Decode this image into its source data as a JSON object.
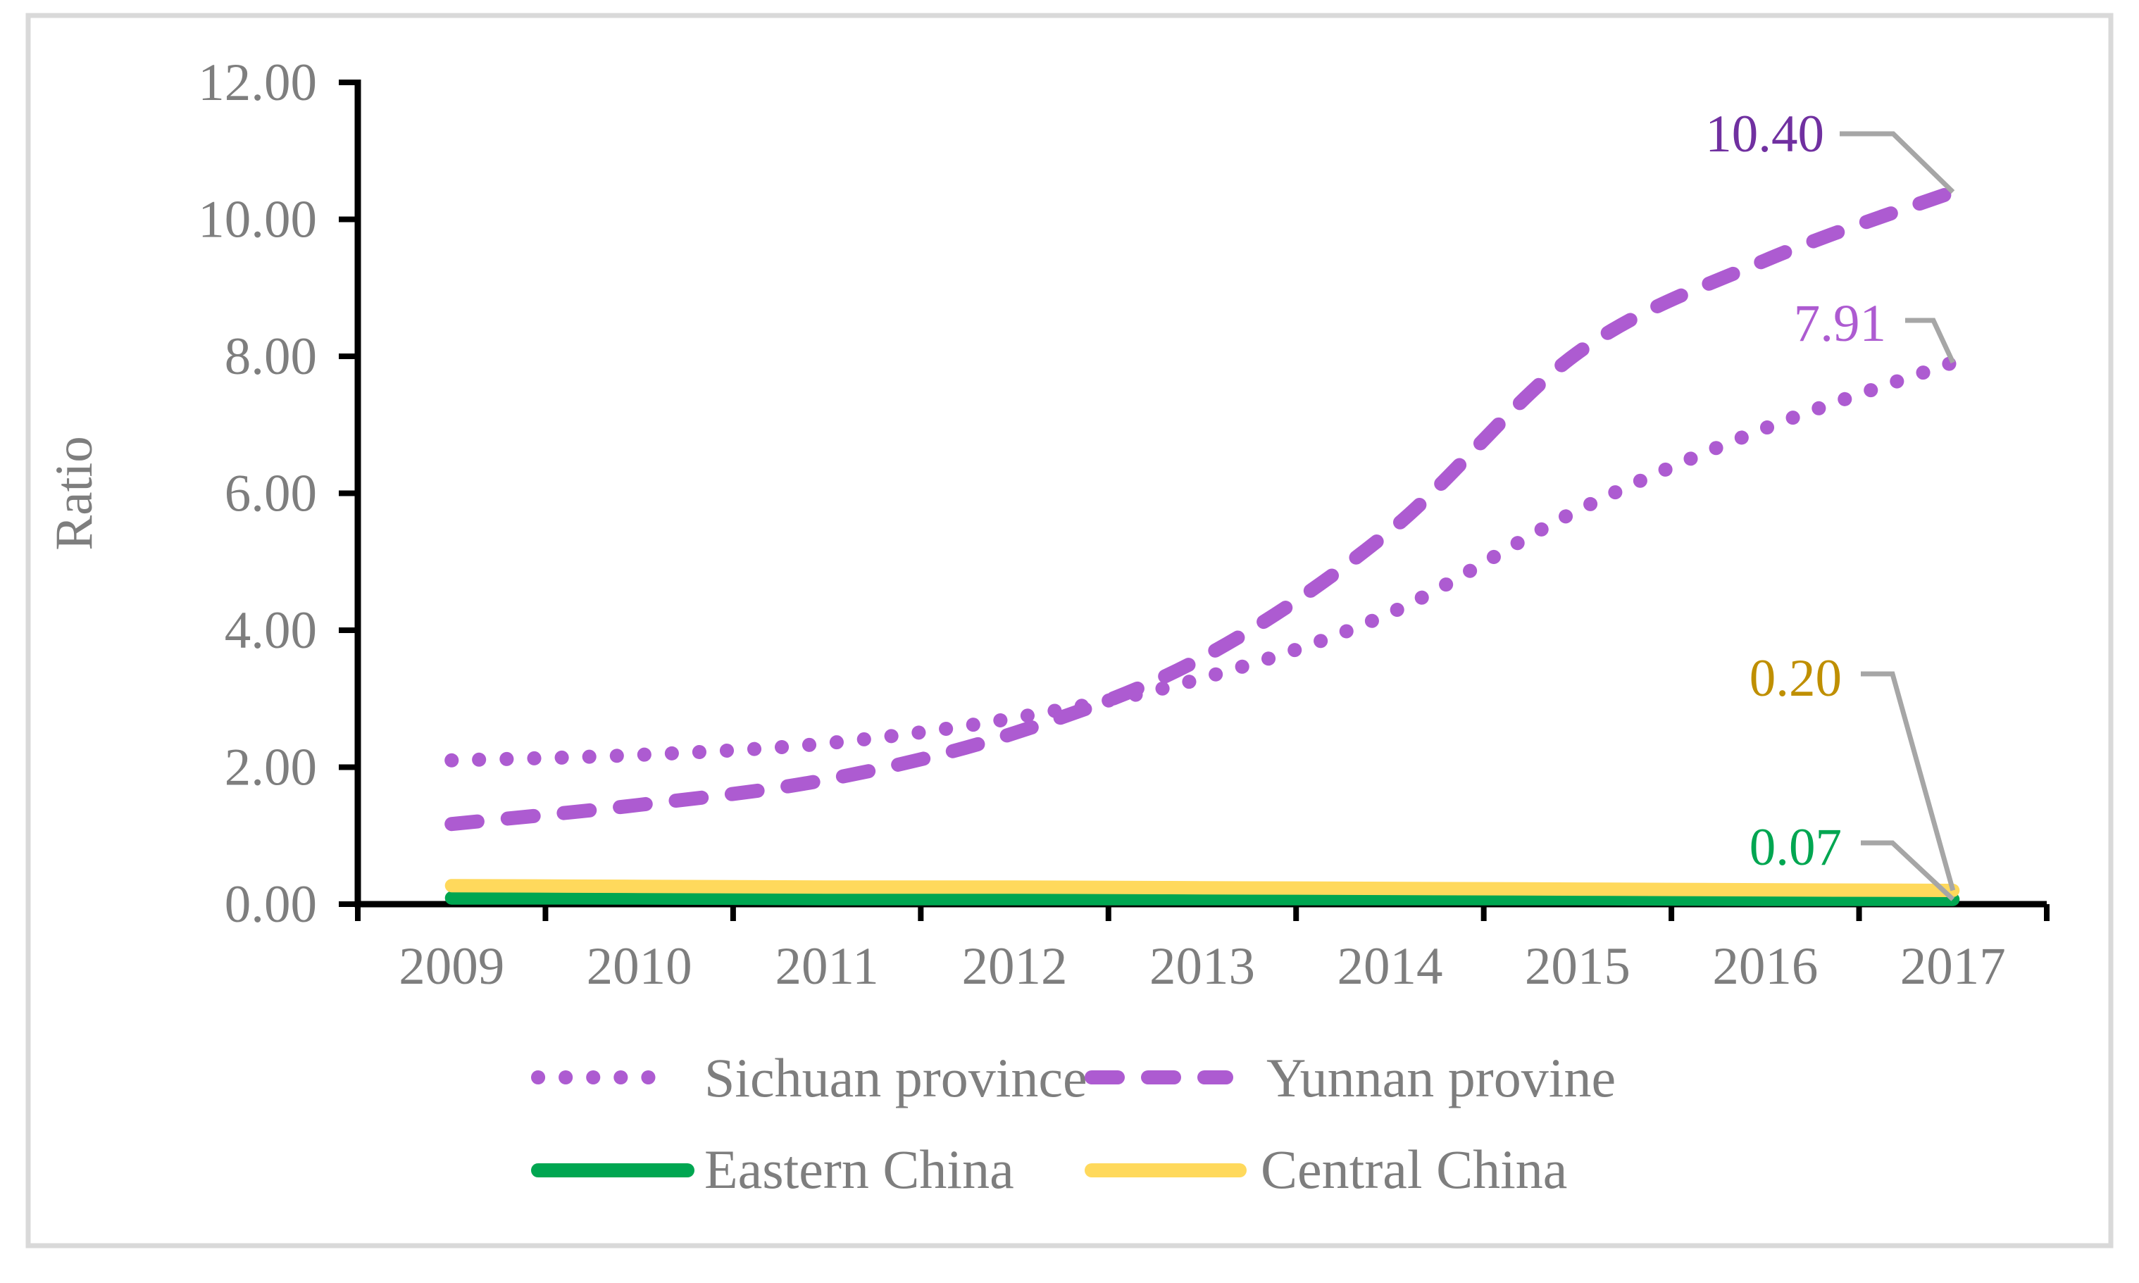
{
  "chart_data": {
    "type": "line",
    "title": "",
    "xlabel": "",
    "ylabel": "Ratio",
    "categories": [
      "2009",
      "2010",
      "2011",
      "2012",
      "2013",
      "2014",
      "2015",
      "2016",
      "2017"
    ],
    "y_ticks": [
      "12.00",
      "10.00",
      "8.00",
      "6.00",
      "4.00",
      "2.00",
      "0.00"
    ],
    "ylim": [
      0,
      12
    ],
    "y_tick_step": 2,
    "grid": false,
    "smooth_lines": true,
    "legend_position": "bottom",
    "series": [
      {
        "name": "Sichuan province",
        "style": "dotted",
        "color": "#AD5BD1",
        "values": [
          2.1,
          2.18,
          2.35,
          2.72,
          3.3,
          4.25,
          5.75,
          6.95,
          7.91
        ],
        "end_label": "7.91",
        "end_label_color": "#AD5BD1"
      },
      {
        "name": "Yunnan provine",
        "style": "dashed",
        "color": "#AD5BD1",
        "values": [
          1.17,
          1.45,
          1.82,
          2.5,
          3.6,
          5.45,
          8.05,
          9.4,
          10.4
        ],
        "end_label": "10.40",
        "end_label_color": "#7030A0"
      },
      {
        "name": "Eastern China",
        "style": "solid",
        "color": "#00A651",
        "values": [
          0.09,
          0.09,
          0.08,
          0.08,
          0.08,
          0.08,
          0.08,
          0.07,
          0.07
        ],
        "end_label": "0.07",
        "end_label_color": "#00A651"
      },
      {
        "name": "Central China",
        "style": "solid",
        "color": "#FFD95C",
        "values": [
          0.27,
          0.26,
          0.25,
          0.25,
          0.24,
          0.23,
          0.22,
          0.21,
          0.2
        ],
        "end_label": "0.20",
        "end_label_color": "#BF8F00"
      }
    ],
    "colors": {
      "axis_text": "#7E7E7E",
      "axis_line": "#000000",
      "leader_line": "#A6A6A6",
      "figure_border": "#D9D9D9",
      "background": "#FFFFFF"
    }
  }
}
